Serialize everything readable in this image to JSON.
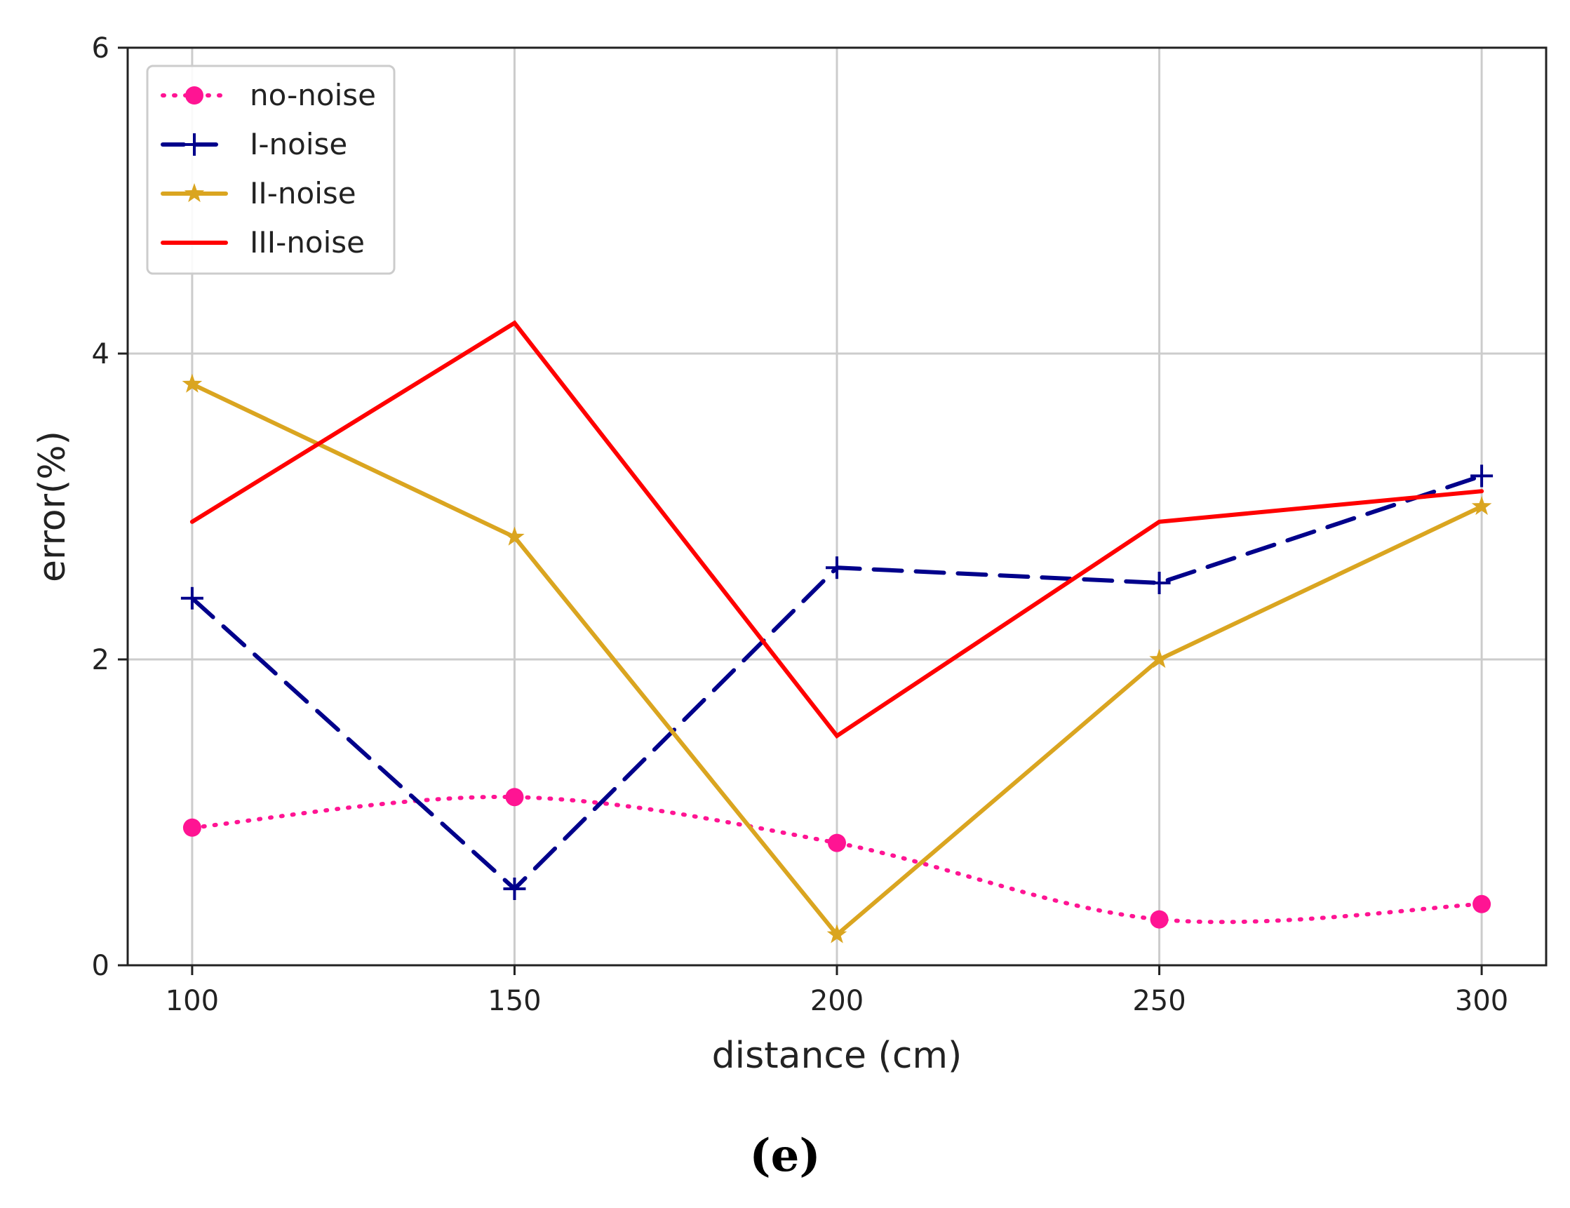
{
  "chart_data": {
    "type": "line",
    "title": "",
    "xlabel": "distance (cm)",
    "ylabel": "error(%)",
    "x": [
      100,
      150,
      200,
      250,
      300
    ],
    "xticks": [
      "100",
      "150",
      "200",
      "250",
      "300"
    ],
    "yticks": [
      "0",
      "2",
      "4",
      "6"
    ],
    "xlim": [
      90,
      310
    ],
    "ylim": [
      0,
      6
    ],
    "grid": true,
    "legend_position": "top-left",
    "series": [
      {
        "name": "no-noise",
        "values": [
          0.9,
          1.1,
          0.8,
          0.3,
          0.4
        ],
        "color": "#ff1493",
        "line": "dotted",
        "marker": "circle"
      },
      {
        "name": "I-noise",
        "values": [
          2.4,
          0.5,
          2.6,
          2.5,
          3.2
        ],
        "color": "#00008b",
        "line": "dashed",
        "marker": "plus"
      },
      {
        "name": "II-noise",
        "values": [
          3.8,
          2.8,
          0.2,
          2.0,
          3.0
        ],
        "color": "#daa520",
        "line": "solid",
        "marker": "star"
      },
      {
        "name": "III-noise",
        "values": [
          2.9,
          4.2,
          1.5,
          2.9,
          3.1
        ],
        "color": "#ff0000",
        "line": "solid",
        "marker": "none"
      }
    ]
  },
  "caption": "(e)"
}
